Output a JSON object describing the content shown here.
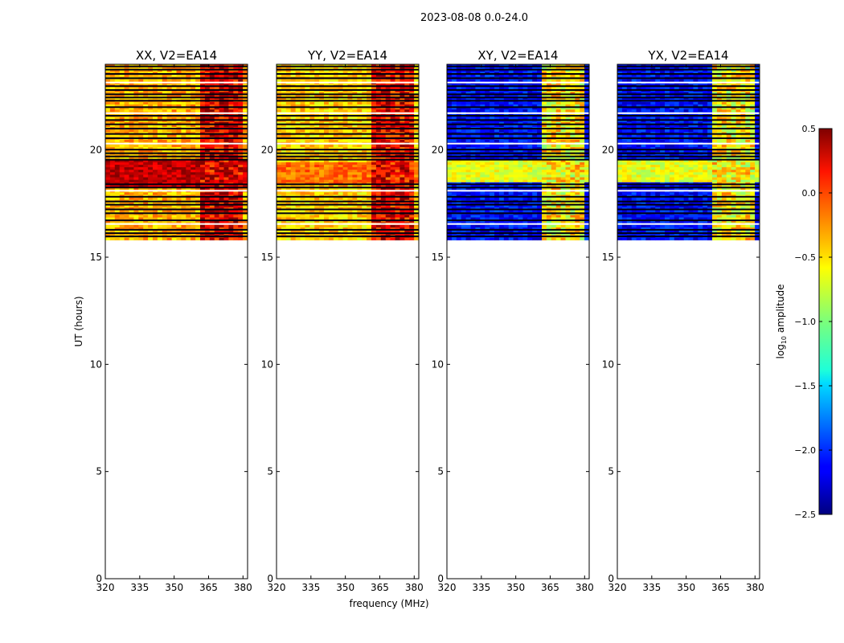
{
  "figure": {
    "suptitle": "2023-08-08 0.0-24.0",
    "xlabel": "frequency (MHz)",
    "ylabel": "UT (hours)"
  },
  "chart_data": [
    {
      "type": "heatmap",
      "title": "XX, V2=EA14",
      "xlim": [
        320,
        382
      ],
      "ylim": [
        0,
        24
      ],
      "xticks": [
        320,
        335,
        350,
        365,
        380
      ],
      "yticks": [
        0,
        5,
        10,
        15,
        20
      ],
      "data_time_range": [
        15.8,
        24.0
      ],
      "rfi_channel_range": [
        362,
        380
      ],
      "log10_amplitude_range": [
        -0.8,
        0.5
      ],
      "typical_log10_amplitude": -0.4,
      "peak_band_hours": [
        18.3,
        19.5
      ],
      "peak_log10_amplitude": 0.3,
      "rfi_log10_amplitude": 0.2,
      "flag_lines_hours": [
        15.97,
        16.12,
        16.28,
        16.55,
        16.72,
        17.05,
        17.23,
        17.45,
        17.6,
        17.82,
        18.1,
        18.25,
        18.4,
        19.55,
        19.7,
        19.85,
        20.02,
        20.3,
        20.55,
        20.75,
        21.0,
        21.2,
        21.4,
        21.6,
        21.72,
        22.0,
        22.3,
        22.45,
        22.6,
        22.8,
        22.98,
        23.15,
        23.35,
        23.55,
        23.75,
        23.9
      ]
    },
    {
      "type": "heatmap",
      "title": "YY, V2=EA14",
      "xlim": [
        320,
        382
      ],
      "ylim": [
        0,
        24
      ],
      "xticks": [
        320,
        335,
        350,
        365,
        380
      ],
      "yticks": [
        0,
        5,
        10,
        15,
        20
      ],
      "data_time_range": [
        15.8,
        24.0
      ],
      "rfi_channel_range": [
        362,
        380
      ],
      "log10_amplitude_range": [
        -0.8,
        0.3
      ],
      "typical_log10_amplitude": -0.5,
      "peak_band_hours": [
        18.4,
        19.4
      ],
      "peak_log10_amplitude": -0.2,
      "rfi_log10_amplitude": 0.15,
      "flag_lines_hours": [
        15.97,
        16.12,
        16.28,
        16.55,
        16.72,
        17.05,
        17.23,
        17.45,
        17.6,
        17.82,
        18.1,
        18.25,
        18.4,
        19.55,
        19.7,
        19.85,
        20.02,
        20.3,
        20.55,
        20.75,
        21.0,
        21.2,
        21.4,
        21.6,
        21.72,
        22.0,
        22.3,
        22.45,
        22.6,
        22.8,
        22.98,
        23.15,
        23.35,
        23.55,
        23.75,
        23.9
      ]
    },
    {
      "type": "heatmap",
      "title": "XY, V2=EA14",
      "xlim": [
        320,
        382
      ],
      "ylim": [
        0,
        24
      ],
      "xticks": [
        320,
        335,
        350,
        365,
        380
      ],
      "yticks": [
        0,
        5,
        10,
        15,
        20
      ],
      "data_time_range": [
        15.8,
        24.0
      ],
      "rfi_channel_range": [
        361,
        380
      ],
      "log10_amplitude_range": [
        -2.5,
        0.2
      ],
      "typical_log10_amplitude": -2.1,
      "peak_band_hours": [
        18.5,
        19.5
      ],
      "peak_log10_amplitude": -0.7,
      "rfi_log10_amplitude": -0.6,
      "flag_lines_hours": [
        15.97,
        16.12,
        16.28,
        16.55,
        16.72,
        17.05,
        17.23,
        17.45,
        17.6,
        17.82,
        18.1,
        18.25,
        18.4,
        19.55,
        19.7,
        19.85,
        20.02,
        20.3,
        20.55,
        20.75,
        21.0,
        21.2,
        21.4,
        21.6,
        21.72,
        22.0,
        22.3,
        22.45,
        22.6,
        22.8,
        22.98,
        23.15,
        23.35,
        23.55,
        23.75,
        23.9
      ]
    },
    {
      "type": "heatmap",
      "title": "YX, V2=EA14",
      "xlim": [
        320,
        382
      ],
      "ylim": [
        0,
        24
      ],
      "xticks": [
        320,
        335,
        350,
        365,
        380
      ],
      "yticks": [
        0,
        5,
        10,
        15,
        20
      ],
      "data_time_range": [
        15.8,
        24.0
      ],
      "rfi_channel_range": [
        361,
        380
      ],
      "log10_amplitude_range": [
        -2.5,
        0.2
      ],
      "typical_log10_amplitude": -2.1,
      "peak_band_hours": [
        18.5,
        19.5
      ],
      "peak_log10_amplitude": -0.7,
      "rfi_log10_amplitude": -0.6,
      "flag_lines_hours": [
        15.97,
        16.12,
        16.28,
        16.55,
        16.72,
        17.05,
        17.23,
        17.45,
        17.6,
        17.82,
        18.1,
        18.25,
        18.4,
        19.55,
        19.7,
        19.85,
        20.02,
        20.3,
        20.55,
        20.75,
        21.0,
        21.2,
        21.4,
        21.6,
        21.72,
        22.0,
        22.3,
        22.45,
        22.6,
        22.8,
        22.98,
        23.15,
        23.35,
        23.55,
        23.75,
        23.9
      ]
    }
  ],
  "colorbar": {
    "label": "log10 amplitude",
    "label_base": "log",
    "label_sub": "10",
    "label_rest": " amplitude",
    "colormap": "jet",
    "range": [
      -2.5,
      0.5
    ],
    "ticks": [
      0.5,
      0.0,
      -0.5,
      -1.0,
      -1.5,
      -2.0,
      -2.5
    ],
    "tick_labels": [
      "0.5",
      "0.0",
      "−0.5",
      "−1.0",
      "−1.5",
      "−2.0",
      "−2.5"
    ]
  }
}
